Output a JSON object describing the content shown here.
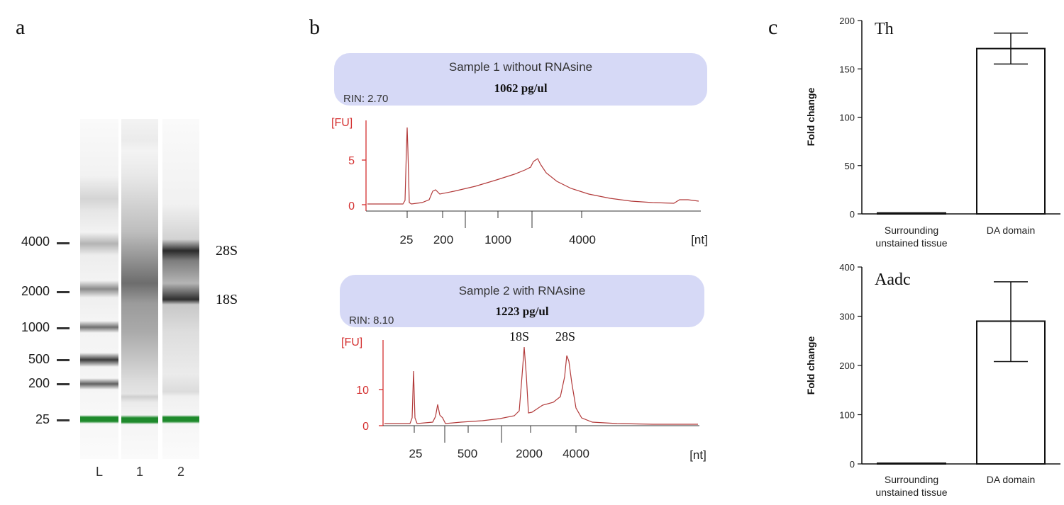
{
  "panels": {
    "a": {
      "letter": "a",
      "markers": [
        "4000",
        "2000",
        "1000",
        "500",
        "200",
        "25"
      ],
      "lanes": [
        "L",
        "1",
        "2"
      ],
      "band_labels": [
        "28S",
        "18S"
      ]
    },
    "b": {
      "letter": "b",
      "sample1": {
        "title": "Sample 1 without RNAsine",
        "conc": "1062 pg/ul",
        "rin": "RIN: 2.70",
        "ylabel": "[FU]",
        "yticks": [
          "5",
          "0"
        ],
        "xticks": [
          "25",
          "200",
          "1000",
          "4000"
        ],
        "xunit": "[nt]"
      },
      "sample2": {
        "title": "Sample 2 with RNAsine",
        "conc": "1223 pg/ul",
        "rin": "RIN: 8.10",
        "ylabel": "[FU]",
        "yticks": [
          "10",
          "0"
        ],
        "xticks": [
          "25",
          "500",
          "2000",
          "4000"
        ],
        "xunit": "[nt]",
        "peak_labels": [
          "18S",
          "28S"
        ]
      }
    },
    "c": {
      "letter": "c"
    }
  },
  "chart_data": [
    {
      "type": "bar",
      "title": "Th",
      "ylabel": "Fold change",
      "categories": [
        [
          "Surrounding",
          "unstained tissue"
        ],
        [
          "DA domain"
        ]
      ],
      "values": [
        1,
        171
      ],
      "errors": [
        [
          1,
          1
        ],
        [
          155,
          187
        ]
      ],
      "ylim": [
        0,
        200
      ],
      "yticks": [
        0,
        50,
        100,
        150,
        200
      ]
    },
    {
      "type": "bar",
      "title": "Aadc",
      "ylabel": "Fold change",
      "categories": [
        [
          "Surrounding",
          "unstained tissue"
        ],
        [
          "DA domain"
        ]
      ],
      "values": [
        0,
        290
      ],
      "errors": [
        [
          0,
          0
        ],
        [
          208,
          370
        ]
      ],
      "ylim": [
        0,
        400
      ],
      "yticks": [
        0,
        100,
        200,
        300,
        400
      ]
    }
  ]
}
